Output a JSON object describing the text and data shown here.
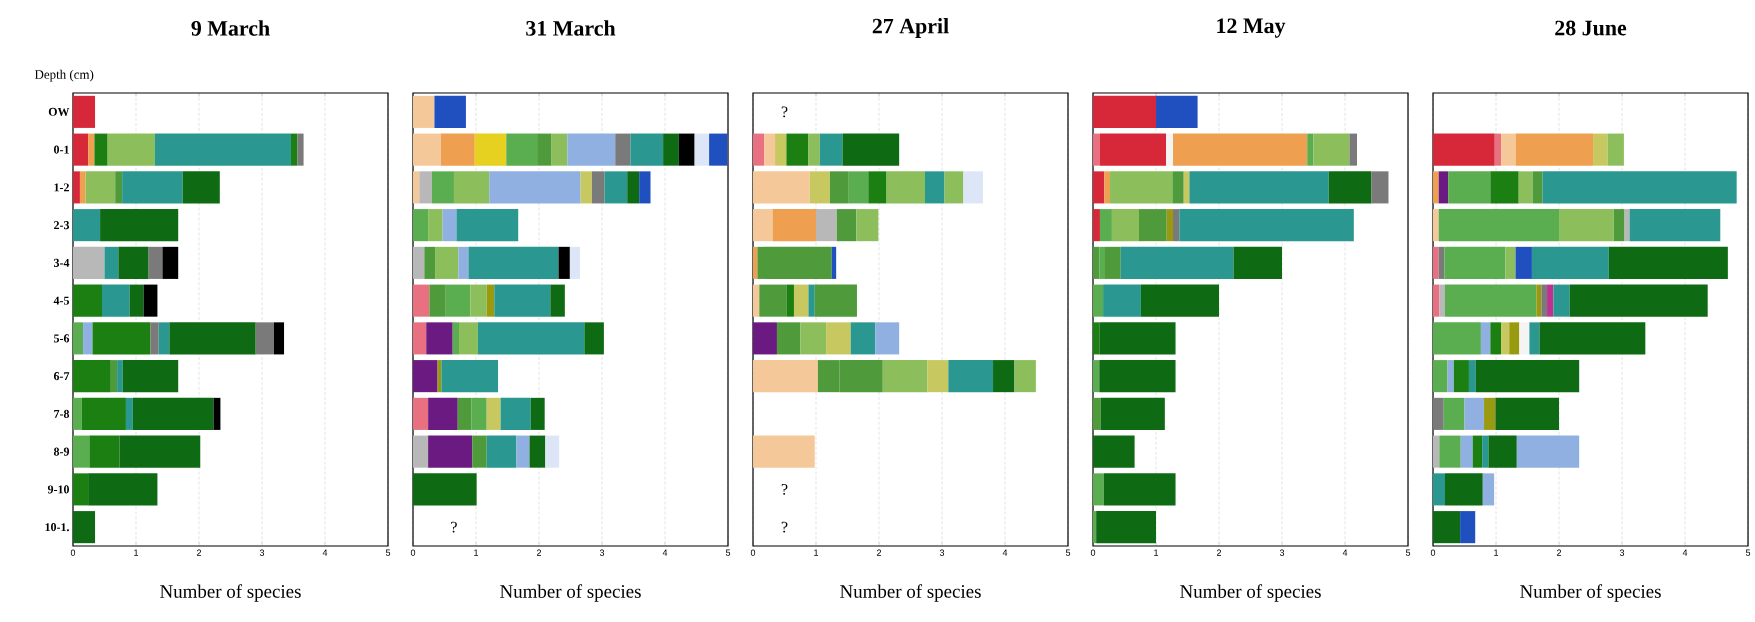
{
  "chart_data": [
    {
      "type": "bar",
      "orientation": "horizontal",
      "stacked": true,
      "title": "9 March",
      "ylabel": "Depth (cm)",
      "xlabel": "Number of species",
      "grid": "x",
      "categories": [
        "OW",
        "0-1",
        "1-2",
        "2-3",
        "3-4",
        "4-5",
        "5-6",
        "6-7",
        "7-8",
        "8-9",
        "9-10",
        "10-1."
      ],
      "xlim": [
        0,
        5
      ],
      "xticks": [
        0,
        1,
        2,
        3,
        4,
        5
      ],
      "series": [
        {
          "values": [
            0.35,
            0.24,
            0.11,
            0.43,
            0.5,
            0.46,
            0.16,
            0.6,
            0.14,
            0.26,
            0.24,
            0.35
          ],
          "colors": [
            "#d62839",
            "#d62839",
            "#d62839",
            "#2a9890",
            "#b8b8b8",
            "#1b7f12",
            "#5aae50",
            "#1b7f12",
            "#5aae50",
            "#5aae50",
            "#1b7f12",
            "#0f6a14"
          ]
        },
        {
          "values": [
            null,
            0.1,
            0.09,
            1.24,
            0.22,
            0.44,
            0.15,
            0.1,
            0.7,
            0.48,
            1.1,
            null
          ],
          "colors": [
            null,
            "#eea050",
            "#eea050",
            "#0f6a14",
            "#2a9890",
            "#2a9890",
            "#8fb0e0",
            "#4f9a3a",
            "#1b7f12",
            "#1b7f12",
            "#0f6a14",
            null
          ]
        },
        {
          "values": [
            null,
            0.21,
            0.47,
            null,
            0.48,
            0.22,
            0.92,
            0.09,
            0.11,
            1.28,
            null,
            null
          ],
          "colors": [
            null,
            "#1b7f12",
            "#8cbf5c",
            null,
            "#0f6a14",
            "#0f6a14",
            "#1b7f12",
            "#2a9890",
            "#2a9890",
            "#0f6a14",
            null,
            null
          ]
        },
        {
          "values": [
            null,
            0.75,
            0.11,
            null,
            0.22,
            0.22,
            0.13,
            0.88,
            1.28,
            null,
            null,
            null
          ],
          "colors": [
            null,
            "#8cbf5c",
            "#4f9a3a",
            null,
            "#7a7a7a",
            "#000000",
            "#7a7a7a",
            "#0f6a14",
            "#0f6a14",
            null,
            null,
            null
          ]
        },
        {
          "values": [
            null,
            2.16,
            0.96,
            null,
            0.25,
            null,
            0.17,
            null,
            0.11,
            null,
            null,
            null
          ],
          "colors": [
            null,
            "#2a9890",
            "#2a9890",
            null,
            "#000000",
            null,
            "#2a9890",
            null,
            "#000000",
            null,
            null,
            null
          ]
        },
        {
          "values": [
            null,
            0.1,
            0.59,
            null,
            null,
            null,
            1.37,
            null,
            null,
            null,
            null,
            null
          ],
          "colors": [
            null,
            "#1b7f12",
            "#0f6a14",
            null,
            null,
            null,
            "#0f6a14",
            null,
            null,
            null,
            null,
            null
          ]
        },
        {
          "values": [
            null,
            0.1,
            null,
            null,
            null,
            null,
            0.29,
            null,
            null,
            null,
            null,
            null
          ],
          "colors": [
            null,
            "#7a7a7a",
            null,
            null,
            null,
            null,
            "#7a7a7a",
            null,
            null,
            null,
            null,
            null
          ]
        },
        {
          "values": [
            null,
            null,
            null,
            null,
            null,
            null,
            0.16,
            null,
            null,
            null,
            null,
            null
          ],
          "colors": [
            null,
            null,
            null,
            null,
            null,
            null,
            "#000000",
            null,
            null,
            null,
            null,
            null
          ]
        }
      ]
    },
    {
      "type": "bar",
      "orientation": "horizontal",
      "stacked": true,
      "title": "31 March",
      "xlabel": "Number of species",
      "grid": "x",
      "tick_labels": "x",
      "categories": [
        null,
        null,
        null,
        null,
        null,
        null,
        null,
        null,
        null,
        null,
        null,
        null
      ],
      "xlim": [
        0,
        5
      ],
      "xticks": [
        0,
        1,
        2,
        3,
        4,
        5
      ],
      "annotations": [
        "?"
      ],
      "series": [
        {
          "values": [
            0.34,
            0.44,
            0.1,
            0.24,
            0.18,
            0.26,
            0.21,
            0.39,
            0.24,
            0.24,
            1.01,
            null
          ],
          "colors": [
            "#f5c89a",
            "#f5c89a",
            "#f5c89a",
            "#5aae50",
            "#b8b8b8",
            "#e87080",
            "#e87080",
            "#6a1a80",
            "#e87080",
            "#b8b8b8",
            "#0f6a14",
            null
          ]
        },
        {
          "values": [
            0.5,
            0.54,
            0.2,
            0.23,
            0.17,
            0.26,
            0.42,
            0.06,
            0.47,
            0.7,
            null,
            null
          ],
          "colors": [
            "#2050c0",
            "#eea050",
            "#b8b8b8",
            "#8cbf5c",
            "#4f9a3a",
            "#4f9a3a",
            "#6a1a80",
            "#9a9a10",
            "#6a1a80",
            "#6a1a80",
            null,
            null
          ]
        },
        {
          "values": [
            null,
            0.5,
            0.35,
            0.22,
            0.37,
            0.39,
            0.1,
            0.9,
            0.22,
            0.23,
            null,
            null
          ],
          "colors": [
            null,
            "#e6d020",
            "#5aae50",
            "#8fb0e0",
            "#8cbf5c",
            "#5aae50",
            "#5aae50",
            "#2a9890",
            "#4f9a3a",
            "#4f9a3a",
            null,
            null
          ]
        },
        {
          "values": [
            null,
            0.49,
            0.56,
            0.98,
            0.16,
            0.26,
            0.3,
            null,
            0.24,
            0.47,
            null,
            null
          ],
          "colors": [
            null,
            "#5aae50",
            "#8cbf5c",
            "#2a9890",
            "#8fb0e0",
            "#8cbf5c",
            "#8cbf5c",
            null,
            "#5aae50",
            "#2a9890",
            null,
            null
          ]
        },
        {
          "values": [
            null,
            0.23,
            1.45,
            null,
            1.43,
            0.12,
            1.69,
            null,
            0.22,
            0.21,
            null,
            null
          ],
          "colors": [
            null,
            "#4f9a3a",
            "#8fb0e0",
            null,
            "#2a9890",
            "#9a9a10",
            "#2a9890",
            null,
            "#c8c860",
            "#8fb0e0",
            null,
            null
          ]
        },
        {
          "values": [
            null,
            0.25,
            0.18,
            null,
            0.18,
            0.89,
            0.31,
            null,
            0.48,
            0.25,
            null,
            null
          ],
          "colors": [
            null,
            "#8cbf5c",
            "#c8c860",
            null,
            "#000000",
            "#2a9890",
            "#0f6a14",
            null,
            "#2a9890",
            "#0f6a14",
            null,
            null
          ]
        },
        {
          "values": [
            null,
            0.76,
            0.2,
            null,
            0.16,
            0.23,
            null,
            null,
            0.22,
            0.22,
            null,
            null
          ],
          "colors": [
            null,
            "#8fb0e0",
            "#7a7a7a",
            null,
            "#dde6f6",
            "#0f6a14",
            null,
            null,
            "#0f6a14",
            "#dde6f6",
            null,
            null
          ]
        },
        {
          "values": [
            null,
            0.24,
            0.36,
            null,
            null,
            null,
            null,
            null,
            null,
            null,
            null,
            null
          ],
          "colors": [
            null,
            "#7a7a7a",
            "#2a9890",
            null,
            null,
            null,
            null,
            null,
            null,
            null,
            null,
            null
          ]
        },
        {
          "values": [
            null,
            0.52,
            0.19,
            null,
            null,
            null,
            null,
            null,
            null,
            null,
            null,
            null
          ],
          "colors": [
            null,
            "#2a9890",
            "#0f6a14",
            null,
            null,
            null,
            null,
            null,
            null,
            null,
            null,
            null
          ]
        },
        {
          "values": [
            null,
            0.25,
            0.18,
            null,
            null,
            null,
            null,
            null,
            null,
            null,
            null,
            null
          ],
          "colors": [
            null,
            "#0f6a14",
            "#2050c0",
            null,
            null,
            null,
            null,
            null,
            null,
            null,
            null,
            null
          ]
        },
        {
          "values": [
            null,
            0.25,
            null,
            null,
            null,
            null,
            null,
            null,
            null,
            null,
            null,
            null
          ],
          "colors": [
            null,
            "#000000",
            null,
            null,
            null,
            null,
            null,
            null,
            null,
            null,
            null,
            null
          ]
        },
        {
          "values": [
            null,
            0.23,
            null,
            null,
            null,
            null,
            null,
            null,
            null,
            null,
            null,
            null
          ],
          "colors": [
            null,
            "#dde6f6",
            null,
            null,
            null,
            null,
            null,
            null,
            null,
            null,
            null,
            null
          ]
        },
        {
          "values": [
            null,
            0.29,
            null,
            null,
            null,
            null,
            null,
            null,
            null,
            null,
            null,
            null
          ],
          "colors": [
            null,
            "#2050c0",
            null,
            null,
            null,
            null,
            null,
            null,
            null,
            null,
            null,
            null
          ]
        }
      ]
    },
    {
      "type": "bar",
      "orientation": "horizontal",
      "stacked": true,
      "title": "27 April",
      "xlabel": "Number of species",
      "grid": "x",
      "tick_labels": "x",
      "categories": [
        null,
        null,
        null,
        null,
        null,
        null,
        null,
        null,
        null,
        null,
        null,
        null
      ],
      "xlim": [
        0,
        5
      ],
      "xticks": [
        0,
        1,
        2,
        3,
        4,
        5
      ],
      "annotations": [
        "?",
        "?",
        "?"
      ],
      "series": [
        {
          "values": [
            null,
            0.18,
            0.9,
            0.31,
            0.07,
            0.1,
            0.38,
            1.03,
            null,
            0.98,
            null,
            null
          ],
          "colors": [
            null,
            "#e87080",
            "#f5c89a",
            "#f5c89a",
            "#eea050",
            "#f5c89a",
            "#6a1a80",
            "#f5c89a",
            null,
            "#f5c89a",
            null,
            null
          ]
        },
        {
          "values": [
            null,
            0.17,
            0.32,
            0.69,
            0.12,
            0.43,
            0.37,
            0.34,
            null,
            null,
            null,
            null
          ],
          "colors": [
            null,
            "#f5c89a",
            "#c8c860",
            "#eea050",
            "#4f9a3a",
            "#4f9a3a",
            "#4f9a3a",
            "#4f9a3a",
            null,
            null,
            null,
            null
          ]
        },
        {
          "values": [
            null,
            0.18,
            0.3,
            0.33,
            1.06,
            0.12,
            0.41,
            0.69,
            null,
            null,
            null,
            null
          ],
          "colors": [
            null,
            "#c8c860",
            "#4f9a3a",
            "#b8b8b8",
            "#4f9a3a",
            "#1b7f12",
            "#8cbf5c",
            "#4f9a3a",
            null,
            null,
            null,
            null
          ]
        },
        {
          "values": [
            null,
            0.35,
            0.31,
            0.31,
            0.07,
            0.23,
            0.39,
            0.71,
            null,
            null,
            null,
            null
          ],
          "colors": [
            null,
            "#1b7f12",
            "#5aae50",
            "#4f9a3a",
            "#2050c0",
            "#c8c860",
            "#c8c860",
            "#8cbf5c",
            null,
            null,
            null,
            null
          ]
        },
        {
          "values": [
            null,
            0.18,
            0.29,
            0.35,
            null,
            0.1,
            0.39,
            0.33,
            null,
            null,
            null,
            null
          ],
          "colors": [
            null,
            "#8cbf5c",
            "#1b7f12",
            "#8cbf5c",
            null,
            "#2a9890",
            "#2a9890",
            "#c8c860",
            null,
            null,
            null,
            null
          ]
        },
        {
          "values": [
            null,
            0.36,
            0.61,
            null,
            null,
            0.67,
            0.38,
            0.71,
            null,
            null,
            null,
            null
          ],
          "colors": [
            null,
            "#2a9890",
            "#8cbf5c",
            null,
            null,
            "#4f9a3a",
            "#8fb0e0",
            "#2a9890",
            null,
            null,
            null,
            null
          ]
        },
        {
          "values": [
            null,
            0.9,
            0.31,
            null,
            null,
            null,
            null,
            0.34,
            null,
            null,
            null,
            null
          ],
          "colors": [
            null,
            "#0f6a14",
            "#2a9890",
            null,
            null,
            null,
            null,
            "#0f6a14",
            null,
            null,
            null,
            null
          ]
        },
        {
          "values": [
            null,
            null,
            0.3,
            null,
            null,
            null,
            null,
            0.34,
            null,
            null,
            null,
            null
          ],
          "colors": [
            null,
            null,
            "#8cbf5c",
            null,
            null,
            null,
            null,
            "#8cbf5c",
            null,
            null,
            null,
            null
          ]
        },
        {
          "values": [
            null,
            null,
            0.31,
            null,
            null,
            null,
            null,
            null,
            null,
            null,
            null,
            null
          ],
          "colors": [
            null,
            null,
            "#dde6f6",
            null,
            null,
            null,
            null,
            null,
            null,
            null,
            null,
            null
          ]
        }
      ]
    },
    {
      "type": "bar",
      "orientation": "horizontal",
      "stacked": true,
      "title": "12 May",
      "xlabel": "Number of species",
      "grid": "x",
      "tick_labels": "x",
      "categories": [
        null,
        null,
        null,
        null,
        null,
        null,
        null,
        null,
        null,
        null,
        null,
        null
      ],
      "xlim": [
        0,
        5
      ],
      "xticks": [
        0,
        1,
        2,
        3,
        4,
        5
      ],
      "series": [
        {
          "values": [
            1.0,
            0.11,
            0.18,
            0.11,
            0.1,
            0.16,
            0.1,
            0.1,
            0.12,
            0.66,
            0.17,
            0.05
          ],
          "colors": [
            "#d62839",
            "#e87080",
            "#d62839",
            "#d62839",
            "#4f9a3a",
            "#5aae50",
            "#1b7f12",
            "#5aae50",
            "#4f9a3a",
            "#0f6a14",
            "#5aae50",
            "#5aae50"
          ]
        },
        {
          "values": [
            0.66,
            1.05,
            0.09,
            0.19,
            0.09,
            0.6,
            1.21,
            1.21,
            1.02,
            null,
            1.14,
            0.95
          ],
          "colors": [
            "#2050c0",
            "#d62839",
            "#eea050",
            "#5aae50",
            "#5aae50",
            "#2a9890",
            "#0f6a14",
            "#0f6a14",
            "#0f6a14",
            null,
            "#0f6a14",
            "#0f6a14"
          ]
        },
        {
          "values": [
            null,
            0.11,
            0.99,
            0.43,
            0.25,
            1.24,
            null,
            null,
            null,
            null,
            null,
            null
          ],
          "colors": [
            null,
            "#f4f4f4",
            "#8cbf5c",
            "#8cbf5c",
            "#4f9a3a",
            "#0f6a14",
            null,
            null,
            null,
            null,
            null,
            null
          ]
        },
        {
          "values": [
            null,
            2.13,
            0.18,
            0.44,
            1.79,
            null,
            null,
            null,
            null,
            null,
            null,
            null
          ],
          "colors": [
            null,
            "#eea050",
            "#4f9a3a",
            "#4f9a3a",
            "#2a9890",
            null,
            null,
            null,
            null,
            null,
            null,
            null
          ]
        },
        {
          "values": [
            null,
            0.1,
            0.09,
            0.1,
            0.77,
            null,
            null,
            null,
            null,
            null,
            null,
            null
          ],
          "colors": [
            null,
            "#5aae50",
            "#c8c860",
            "#9a9a10",
            "#0f6a14",
            null,
            null,
            null,
            null,
            null,
            null,
            null
          ]
        },
        {
          "values": [
            null,
            0.57,
            2.21,
            0.1,
            null,
            null,
            null,
            null,
            null,
            null,
            null,
            null
          ],
          "colors": [
            null,
            "#8cbf5c",
            "#2a9890",
            "#7a7a7a",
            null,
            null,
            null,
            null,
            null,
            null,
            null,
            null
          ]
        },
        {
          "values": [
            null,
            0.12,
            0.68,
            2.77,
            null,
            null,
            null,
            null,
            null,
            null,
            null,
            null
          ],
          "colors": [
            null,
            "#7a7a7a",
            "#0f6a14",
            "#2a9890",
            null,
            null,
            null,
            null,
            null,
            null,
            null,
            null
          ]
        },
        {
          "values": [
            null,
            null,
            0.27,
            null,
            null,
            null,
            null,
            null,
            null,
            null,
            null,
            null
          ],
          "colors": [
            null,
            null,
            "#7a7a7a",
            null,
            null,
            null,
            null,
            null,
            null,
            null,
            null,
            null
          ]
        }
      ]
    },
    {
      "type": "bar",
      "orientation": "horizontal",
      "stacked": true,
      "title": "28 June",
      "xlabel": "Number of species",
      "grid": "x",
      "tick_labels": "x",
      "categories": [
        null,
        null,
        null,
        null,
        null,
        null,
        null,
        null,
        null,
        null,
        null,
        null
      ],
      "xlim": [
        0,
        5
      ],
      "xticks": [
        0,
        1,
        2,
        3,
        4,
        5
      ],
      "series": [
        {
          "values": [
            null,
            0.98,
            0.09,
            0.09,
            0.09,
            0.1,
            0.76,
            0.23,
            0.17,
            0.1,
            0.19,
            0.43
          ],
          "colors": [
            null,
            "#d62839",
            "#eea050",
            "#f5c89a",
            "#e87080",
            "#e87080",
            "#5aae50",
            "#5aae50",
            "#7a7a7a",
            "#b8b8b8",
            "#2a9890",
            "#0f6a14"
          ]
        },
        {
          "values": [
            null,
            0.1,
            0.15,
            1.91,
            0.09,
            0.09,
            0.15,
            0.1,
            0.33,
            0.34,
            0.6,
            0.24
          ],
          "colors": [
            null,
            "#e87080",
            "#6a1a80",
            "#5aae50",
            "#7a7a7a",
            "#b8b8b8",
            "#8fb0e0",
            "#8fb0e0",
            "#5aae50",
            "#5aae50",
            "#0f6a14",
            "#2050c0"
          ]
        },
        {
          "values": [
            null,
            0.23,
            0.67,
            0.87,
            0.97,
            1.45,
            0.17,
            0.24,
            0.31,
            0.19,
            0.18,
            null
          ],
          "colors": [
            null,
            "#f5c89a",
            "#5aae50",
            "#8cbf5c",
            "#5aae50",
            "#5aae50",
            "#1b7f12",
            "#1b7f12",
            "#8fb0e0",
            "#8fb0e0",
            "#8fb0e0",
            null
          ]
        },
        {
          "values": [
            null,
            1.23,
            0.45,
            0.17,
            0.16,
            0.08,
            0.13,
            0.11,
            0.18,
            0.15,
            null,
            null
          ],
          "colors": [
            null,
            "#eea050",
            "#1b7f12",
            "#4f9a3a",
            "#8cbf5c",
            "#9a9a10",
            "#c8c860",
            "#2a9890",
            "#9a9a10",
            "#1b7f12",
            null,
            null
          ]
        },
        {
          "values": [
            null,
            0.23,
            0.22,
            0.08,
            0.26,
            0.09,
            0.16,
            1.64,
            1.01,
            0.1,
            null,
            null
          ],
          "colors": [
            null,
            "#c8c860",
            "#8cbf5c",
            "#b8b8b8",
            "#2050c0",
            "#7a7a7a",
            "#9a9a10",
            "#0f6a14",
            "#0f6a14",
            "#2a9890",
            null,
            null
          ]
        },
        {
          "values": [
            null,
            0.26,
            0.16,
            1.44,
            1.22,
            0.1,
            0.16,
            null,
            null,
            0.45,
            null,
            null
          ],
          "colors": [
            null,
            "#8cbf5c",
            "#4f9a3a",
            "#2a9890",
            "#2a9890",
            "#c03090",
            "#f4f4f4",
            null,
            null,
            "#0f6a14",
            null,
            null
          ]
        },
        {
          "values": [
            null,
            null,
            3.08,
            null,
            1.89,
            0.26,
            0.16,
            null,
            null,
            0.99,
            null,
            null
          ],
          "colors": [
            null,
            null,
            "#2a9890",
            null,
            "#0f6a14",
            "#2a9890",
            "#2a9890",
            null,
            null,
            "#8fb0e0",
            null,
            null
          ]
        },
        {
          "values": [
            null,
            null,
            null,
            null,
            null,
            2.19,
            1.68,
            null,
            null,
            null,
            null,
            null
          ],
          "colors": [
            null,
            null,
            null,
            null,
            null,
            "#0f6a14",
            "#0f6a14",
            null,
            null,
            null,
            null,
            null
          ]
        }
      ]
    }
  ]
}
